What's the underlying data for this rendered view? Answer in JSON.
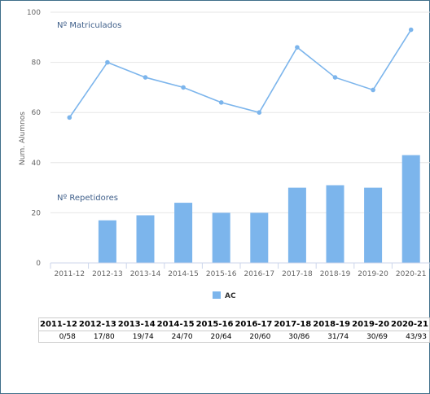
{
  "chart_data": {
    "type": "bar",
    "categories": [
      "2011-12",
      "2012-13",
      "2013-14",
      "2014-15",
      "2015-16",
      "2016-17",
      "2017-18",
      "2018-19",
      "2019-20",
      "2020-21"
    ],
    "ylabel": "Num. Alumnos",
    "ylim": [
      0,
      100
    ],
    "yticks": [
      0,
      20,
      40,
      60,
      80,
      100
    ],
    "grid": true,
    "legend_position": "bottom-center",
    "series": [
      {
        "name": "AC",
        "type": "bar",
        "annotation": "Nº Repetidores",
        "color": "#7cb5ec",
        "values": [
          0,
          17,
          19,
          24,
          20,
          20,
          30,
          31,
          30,
          43
        ]
      },
      {
        "type": "line",
        "annotation": "Nº Matriculados",
        "color": "#7cb5ec",
        "values": [
          58,
          80,
          74,
          70,
          64,
          60,
          86,
          74,
          69,
          93
        ]
      }
    ]
  },
  "table": {
    "headers": [
      "2011-12",
      "2012-13",
      "2013-14",
      "2014-15",
      "2015-16",
      "2016-17",
      "2017-18",
      "2018-19",
      "2019-20",
      "2020-21"
    ],
    "values": [
      "0/58",
      "17/80",
      "19/74",
      "24/70",
      "20/64",
      "20/60",
      "30/86",
      "31/74",
      "30/69",
      "43/93"
    ]
  }
}
